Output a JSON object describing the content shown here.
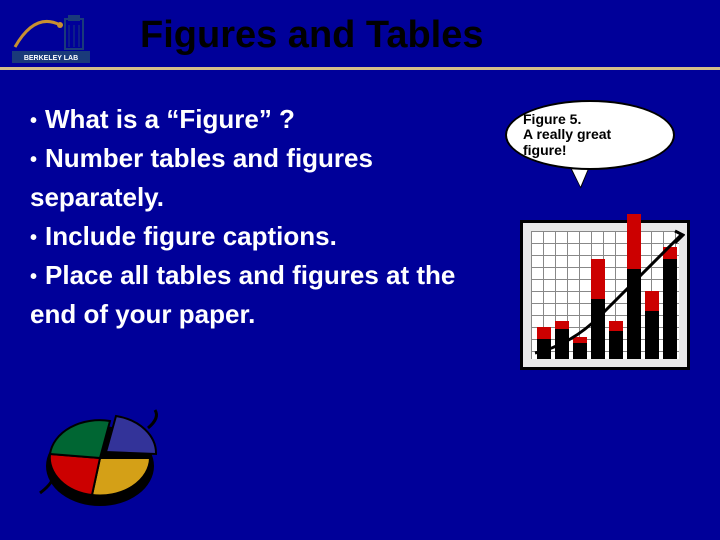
{
  "header": {
    "title": "Figures and Tables",
    "title_color": "#000000",
    "title_fontsize": 38,
    "logo_label": "BERKELEY LAB",
    "divider_color": "#d4be8a"
  },
  "background_color": "#000099",
  "bullets": {
    "text_color": "#ffffff",
    "fontsize": 26,
    "items": [
      "What is a “Figure” ?",
      "Number tables and figures separately.",
      "Include figure captions.",
      "Place all tables and figures at the end of your paper."
    ]
  },
  "speech": {
    "line1": "Figure 5.",
    "line2": "A really great",
    "line3": "figure!",
    "font": "Comic Sans MS",
    "fontsize": 14
  },
  "chart": {
    "type": "bar+line",
    "bg": "#e8e8e8",
    "grid_color": "#888888",
    "bar_red": "#cc0000",
    "bar_black": "#000000",
    "curve_color": "#000000",
    "bars": [
      {
        "red": 12,
        "black": 20
      },
      {
        "red": 8,
        "black": 30
      },
      {
        "red": 6,
        "black": 16
      },
      {
        "red": 40,
        "black": 60
      },
      {
        "red": 10,
        "black": 28
      },
      {
        "red": 55,
        "black": 90
      },
      {
        "red": 20,
        "black": 48
      },
      {
        "red": 12,
        "black": 100
      }
    ]
  },
  "pie": {
    "type": "pie",
    "slices": [
      {
        "color": "#d4a017",
        "pct": 30
      },
      {
        "color": "#cc0000",
        "pct": 25
      },
      {
        "color": "#006633",
        "pct": 25
      },
      {
        "color": "#333399",
        "pct": 20
      }
    ]
  }
}
